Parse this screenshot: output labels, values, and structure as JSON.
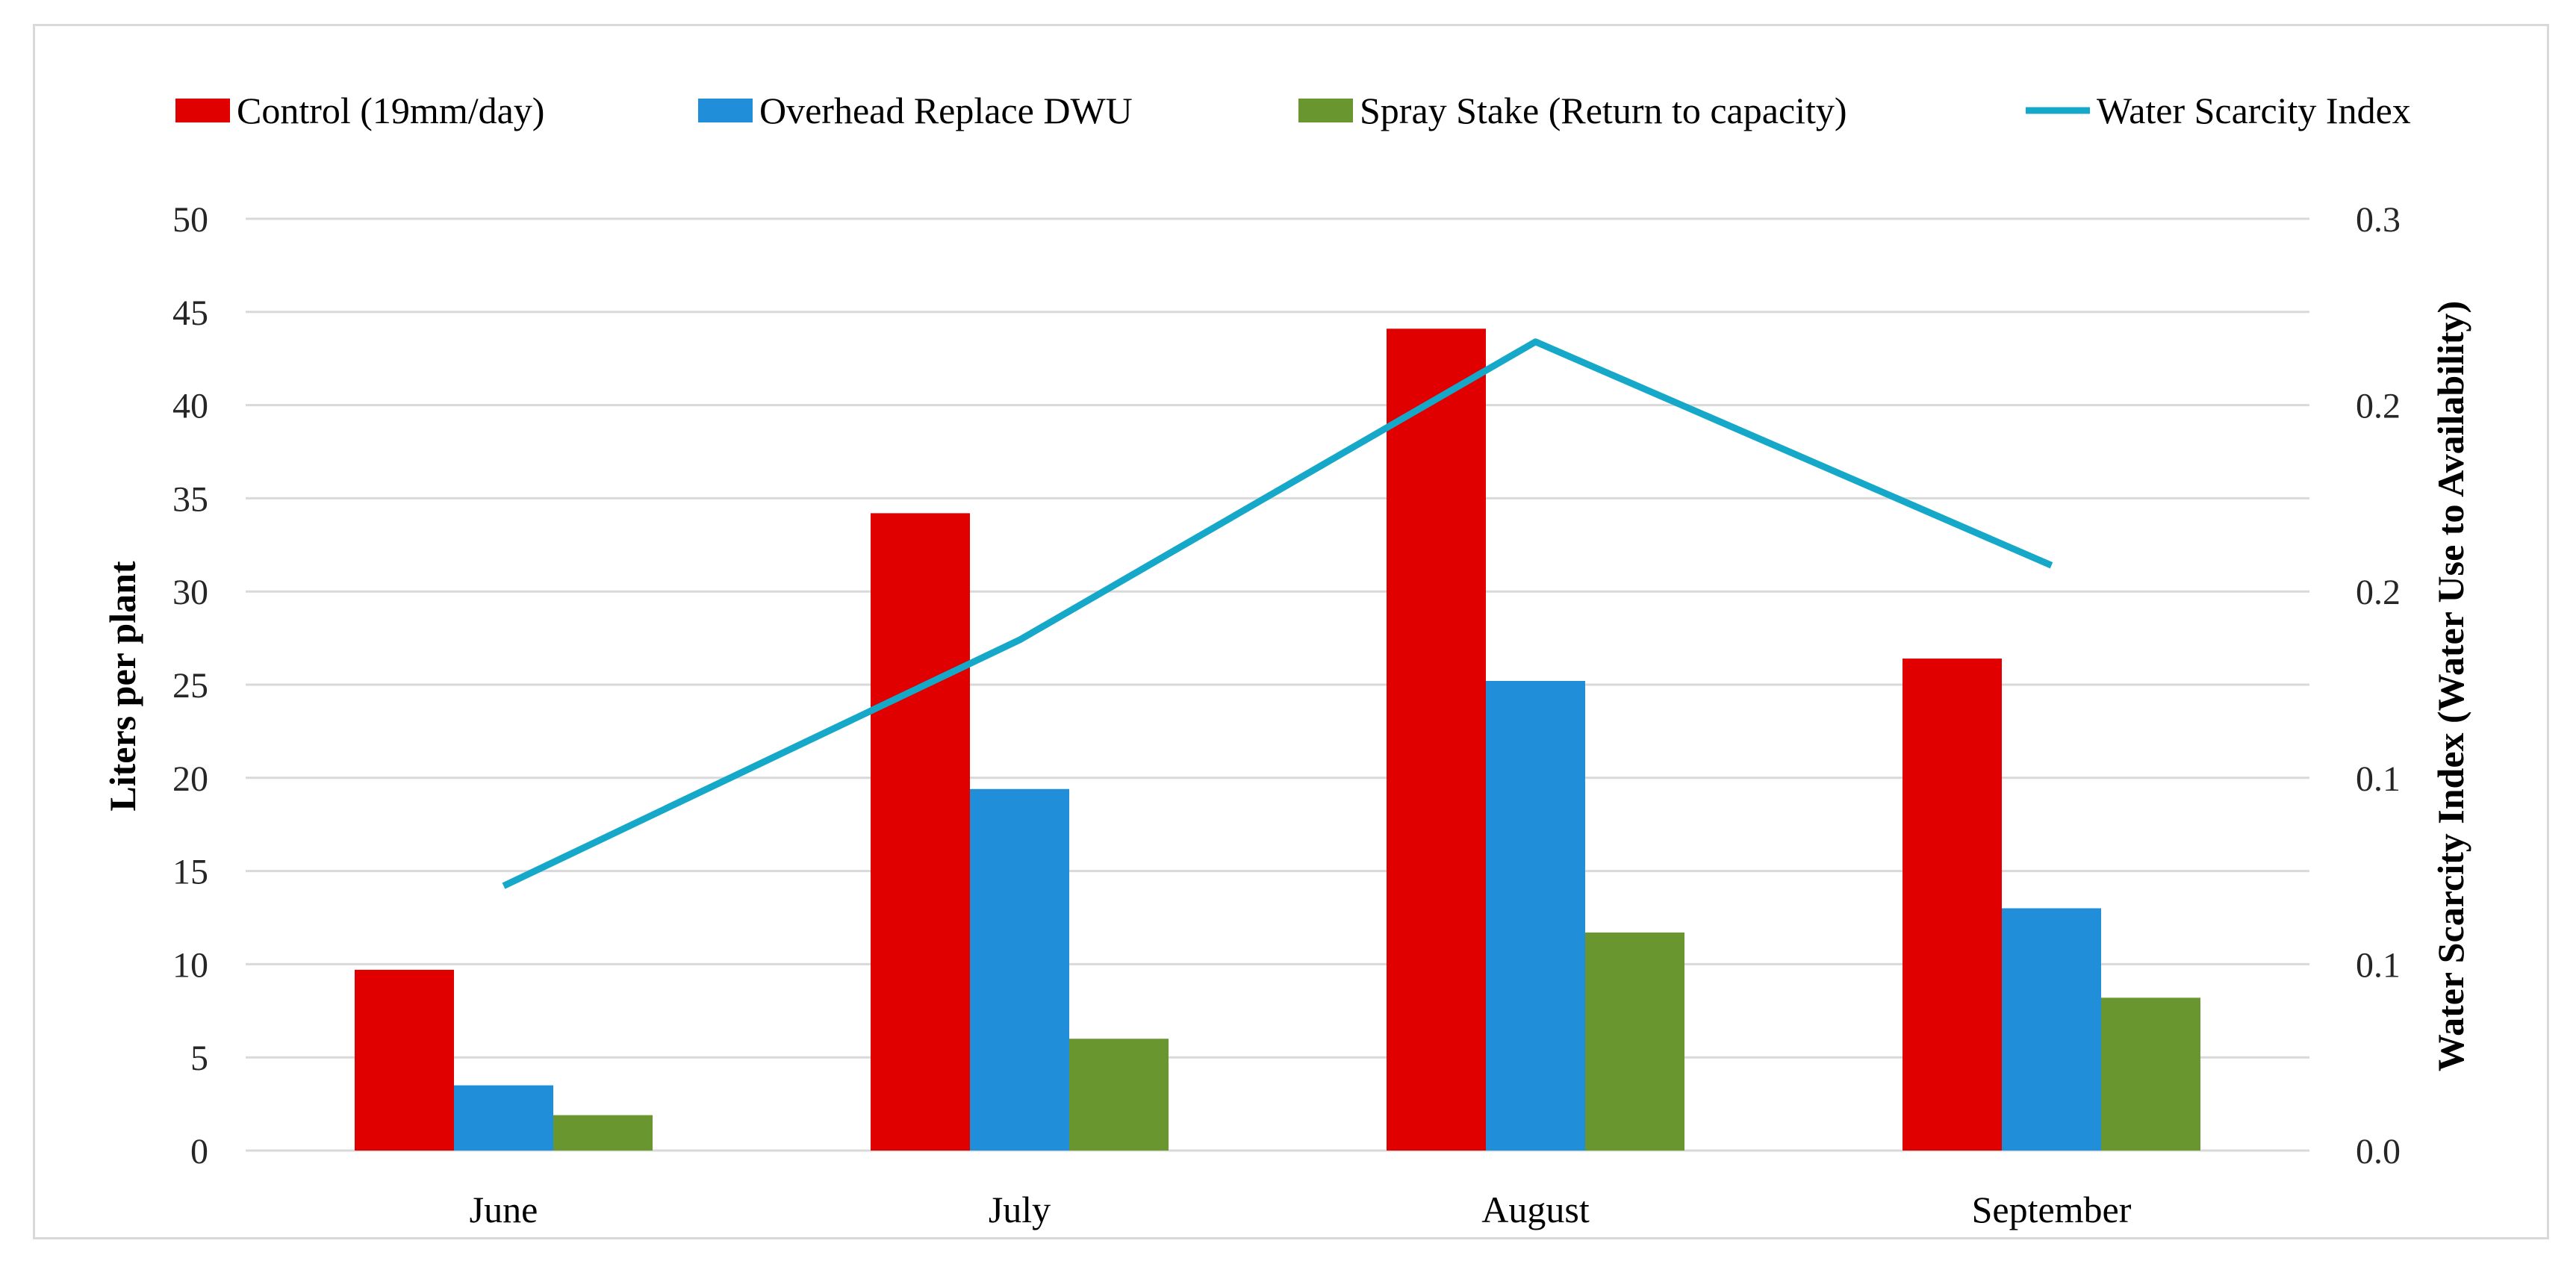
{
  "chart_data": {
    "type": "bar",
    "categories": [
      "June",
      "July",
      "August",
      "September"
    ],
    "series": [
      {
        "name": "Control (19mm/day)",
        "kind": "bar",
        "axis": "left",
        "color": "#e00000",
        "values": [
          9.7,
          34.2,
          44.1,
          26.4
        ]
      },
      {
        "name": "Overhead Replace DWU",
        "kind": "bar",
        "axis": "left",
        "color": "#208ed8",
        "values": [
          3.5,
          19.4,
          25.2,
          13.0
        ]
      },
      {
        "name": "Spray Stake (Return to capacity)",
        "kind": "bar",
        "axis": "left",
        "color": "#6a9630",
        "values": [
          1.9,
          6.0,
          11.7,
          8.2
        ]
      },
      {
        "name": "Water Scarcity Index",
        "kind": "line",
        "axis": "right",
        "color": "#15a8c8",
        "values": [
          0.071,
          0.137,
          0.217,
          0.157
        ]
      }
    ],
    "title": "",
    "xlabel": "",
    "ylabel": "Liters per plant",
    "ylabel_right": "Water Scarcity Index (Water Use to Availability)",
    "ylim": [
      0,
      50
    ],
    "ylim_right": [
      0,
      0.25
    ],
    "yticks": [
      0,
      5,
      10,
      15,
      20,
      25,
      30,
      35,
      40,
      45,
      50
    ],
    "yticks_right_values": [
      0,
      0.05,
      0.1,
      0.15,
      0.2,
      0.25
    ],
    "yticks_right_labels": [
      "0.0",
      "0.1",
      "0.1",
      "0.2",
      "0.2",
      "0.3"
    ],
    "grid": true,
    "legend_position": "top"
  }
}
